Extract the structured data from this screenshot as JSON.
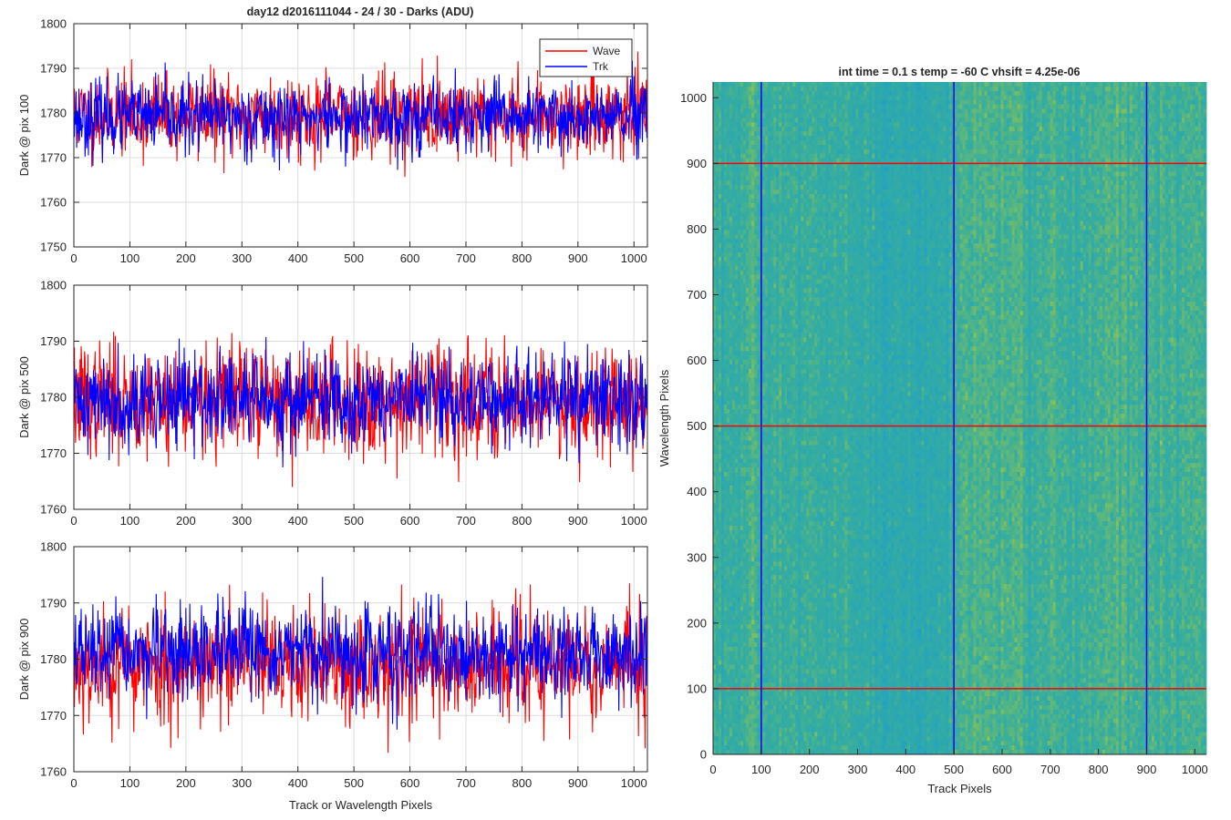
{
  "figure": {
    "title_left": "day12 d2016111044 - 24 / 30 - Darks (ADU)",
    "title_right": "int time = 0.1 s   temp = -60 C   vhsift = 4.25e-06"
  },
  "chart_data": [
    {
      "type": "line",
      "title": "day12 d2016111044 - 24 / 30 - Darks (ADU)",
      "xlabel": "",
      "ylabel": "Dark @ pix 100",
      "xlim": [
        0,
        1024
      ],
      "ylim": [
        1750,
        1800
      ],
      "xticks": [
        0,
        100,
        200,
        300,
        400,
        500,
        600,
        700,
        800,
        900,
        1000
      ],
      "yticks": [
        1750,
        1760,
        1770,
        1780,
        1790,
        1800
      ],
      "grid": true,
      "legend": "top-right",
      "x_count": 1024,
      "series": [
        {
          "name": "Wave",
          "color": "#ff0000",
          "mean": 1779.5,
          "std": 4.6,
          "min": 1763,
          "max": 1800,
          "noise_seed": 11
        },
        {
          "name": "Trk",
          "color": "#0000ff",
          "mean": 1779,
          "std": 4.0,
          "min": 1758,
          "max": 1797,
          "noise_seed": 23
        }
      ]
    },
    {
      "type": "line",
      "xlabel": "",
      "ylabel": "Dark @ pix 500",
      "xlim": [
        0,
        1024
      ],
      "ylim": [
        1760,
        1800
      ],
      "xticks": [
        0,
        100,
        200,
        300,
        400,
        500,
        600,
        700,
        800,
        900,
        1000
      ],
      "yticks": [
        1760,
        1770,
        1780,
        1790,
        1800
      ],
      "grid": true,
      "x_count": 1024,
      "series": [
        {
          "name": "Wave",
          "color": "#ff0000",
          "mean": 1779.5,
          "std": 5.0,
          "min": 1760,
          "max": 1798,
          "noise_seed": 37
        },
        {
          "name": "Trk",
          "color": "#0000ff",
          "mean": 1779.5,
          "std": 4.2,
          "min": 1762,
          "max": 1798,
          "noise_seed": 41
        }
      ]
    },
    {
      "type": "line",
      "xlabel": "Track or Wavelength Pixels",
      "ylabel": "Dark @ pix 900",
      "xlim": [
        0,
        1024
      ],
      "ylim": [
        1760,
        1800
      ],
      "xticks": [
        0,
        100,
        200,
        300,
        400,
        500,
        600,
        700,
        800,
        900,
        1000
      ],
      "yticks": [
        1760,
        1770,
        1780,
        1790,
        1800
      ],
      "grid": true,
      "x_count": 1024,
      "series": [
        {
          "name": "Wave",
          "color": "#ff0000",
          "mean": 1779,
          "std": 5.2,
          "min": 1761,
          "max": 1797,
          "noise_seed": 53
        },
        {
          "name": "Trk",
          "color": "#0000ff",
          "mean": 1781,
          "std": 4.0,
          "min": 1764,
          "max": 1796,
          "noise_seed": 67
        }
      ]
    },
    {
      "type": "heatmap",
      "title": "int time = 0.1 s   temp = -60 C   vhsift = 4.25e-06",
      "xlabel": "Track Pixels",
      "ylabel": "Wavelength Pixels",
      "xlim": [
        0,
        1024
      ],
      "ylim": [
        0,
        1024
      ],
      "xticks": [
        0,
        100,
        200,
        300,
        400,
        500,
        600,
        700,
        800,
        900,
        1000
      ],
      "yticks": [
        0,
        100,
        200,
        300,
        400,
        500,
        600,
        700,
        800,
        900,
        1000
      ],
      "colormap": "parula",
      "colors": {
        "low": "#1fa0c8",
        "mid": "#36ad9f",
        "high": "#9bc746"
      },
      "column_profile": [
        {
          "x": 0,
          "level": 0.45
        },
        {
          "x": 150,
          "level": 0.5
        },
        {
          "x": 300,
          "level": 0.4
        },
        {
          "x": 420,
          "level": 0.3
        },
        {
          "x": 490,
          "level": 0.4
        },
        {
          "x": 520,
          "level": 0.62
        },
        {
          "x": 600,
          "level": 0.56
        },
        {
          "x": 750,
          "level": 0.5
        },
        {
          "x": 820,
          "level": 0.58
        },
        {
          "x": 1024,
          "level": 0.55
        }
      ],
      "vertical_markers": {
        "color": "#0000ff",
        "x": [
          100,
          500,
          900
        ]
      },
      "horizontal_markers": {
        "color": "#ff0000",
        "y": [
          100,
          500,
          900
        ]
      }
    }
  ]
}
